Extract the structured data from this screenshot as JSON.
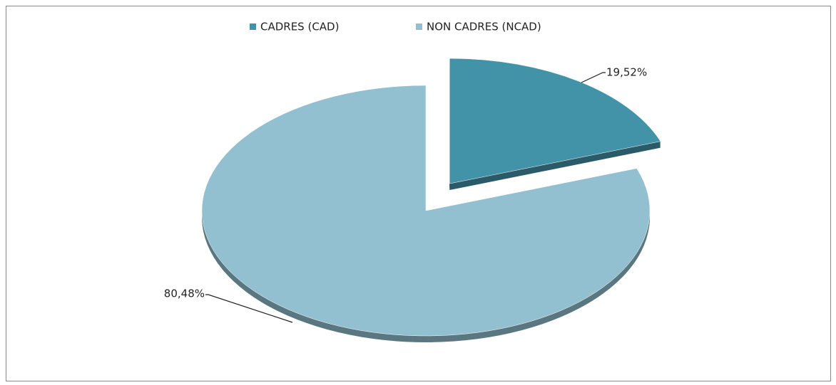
{
  "chart_data": {
    "type": "pie",
    "categories": [
      "CADRES (CAD)",
      "NON CADRES (NCAD)"
    ],
    "values": [
      19.52,
      80.48
    ],
    "value_labels": [
      "19,52%",
      "80,48%"
    ],
    "colors": [
      "#4393a8",
      "#93c0d0"
    ]
  }
}
